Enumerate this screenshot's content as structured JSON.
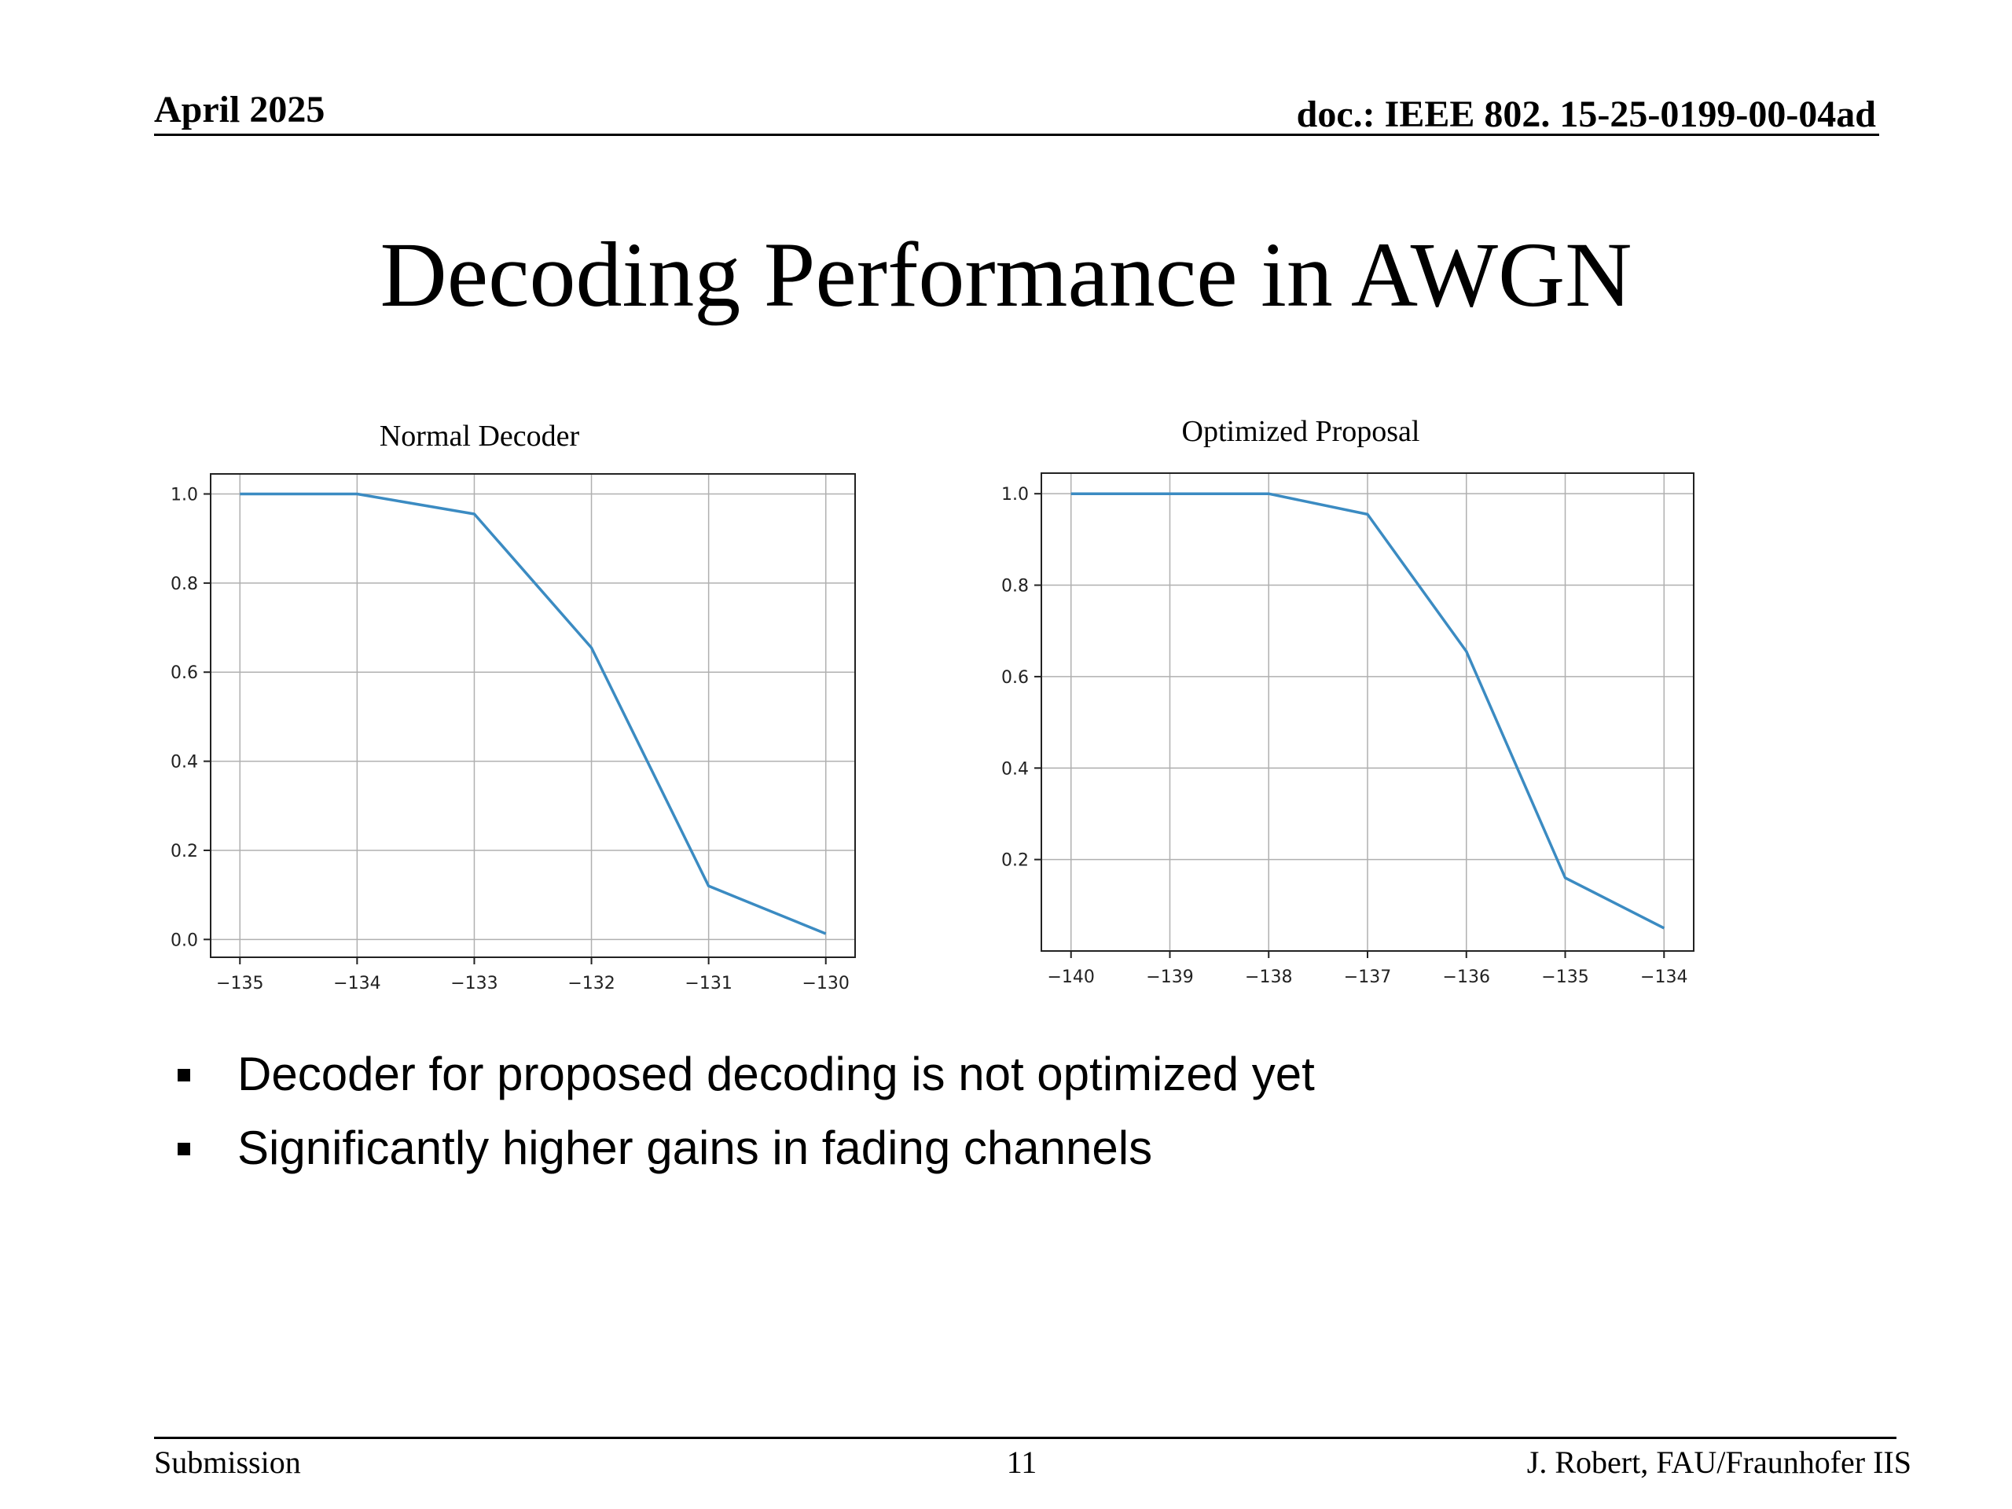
{
  "header": {
    "date": "April 2025",
    "doc_id": "doc.: IEEE 802. 15-25-0199-00-04ad"
  },
  "slide_title": "Decoding Performance in AWGN",
  "charts": {
    "left_title": "Normal Decoder",
    "right_title": "Optimized Proposal"
  },
  "chart_data": [
    {
      "type": "line",
      "title": "Normal Decoder",
      "xlabel": "",
      "ylabel": "",
      "x": [
        -135,
        -134,
        -133,
        -132,
        -131,
        -130
      ],
      "series": [
        {
          "values": [
            1.0,
            1.0,
            0.955,
            0.655,
            0.12,
            0.013
          ]
        }
      ],
      "xlim": [
        -135.25,
        -129.75
      ],
      "ylim": [
        -0.04,
        1.045
      ],
      "xticks": [
        -135,
        -134,
        -133,
        -132,
        -131,
        -130
      ],
      "xtick_labels": [
        "−135",
        "−134",
        "−133",
        "−132",
        "−131",
        "−130"
      ],
      "yticks": [
        0.0,
        0.2,
        0.4,
        0.6,
        0.8,
        1.0
      ],
      "ytick_labels": [
        "0.0",
        "0.2",
        "0.4",
        "0.6",
        "0.8",
        "1.0"
      ],
      "grid": true,
      "line_color": "#3b8bc2"
    },
    {
      "type": "line",
      "title": "Optimized Proposal",
      "xlabel": "",
      "ylabel": "",
      "x": [
        -140,
        -139,
        -138,
        -137,
        -136,
        -135,
        -134
      ],
      "series": [
        {
          "values": [
            1.0,
            1.0,
            1.0,
            0.955,
            0.655,
            0.16,
            0.05
          ]
        }
      ],
      "xlim": [
        -140.3,
        -133.7
      ],
      "ylim": [
        0.0,
        1.045
      ],
      "xticks": [
        -140,
        -139,
        -138,
        -137,
        -136,
        -135,
        -134
      ],
      "xtick_labels": [
        "−140",
        "−139",
        "−138",
        "−137",
        "−136",
        "−135",
        "−134"
      ],
      "yticks": [
        0.2,
        0.4,
        0.6,
        0.8,
        1.0
      ],
      "ytick_labels": [
        "0.2",
        "0.4",
        "0.6",
        "0.8",
        "1.0"
      ],
      "grid": true,
      "line_color": "#3b8bc2"
    }
  ],
  "bullets": [
    "Decoder for proposed decoding is not optimized yet",
    "Significantly higher gains in fading channels"
  ],
  "footer": {
    "left": "Submission",
    "page": "11",
    "right": "J. Robert, FAU/Fraunhofer IIS"
  }
}
